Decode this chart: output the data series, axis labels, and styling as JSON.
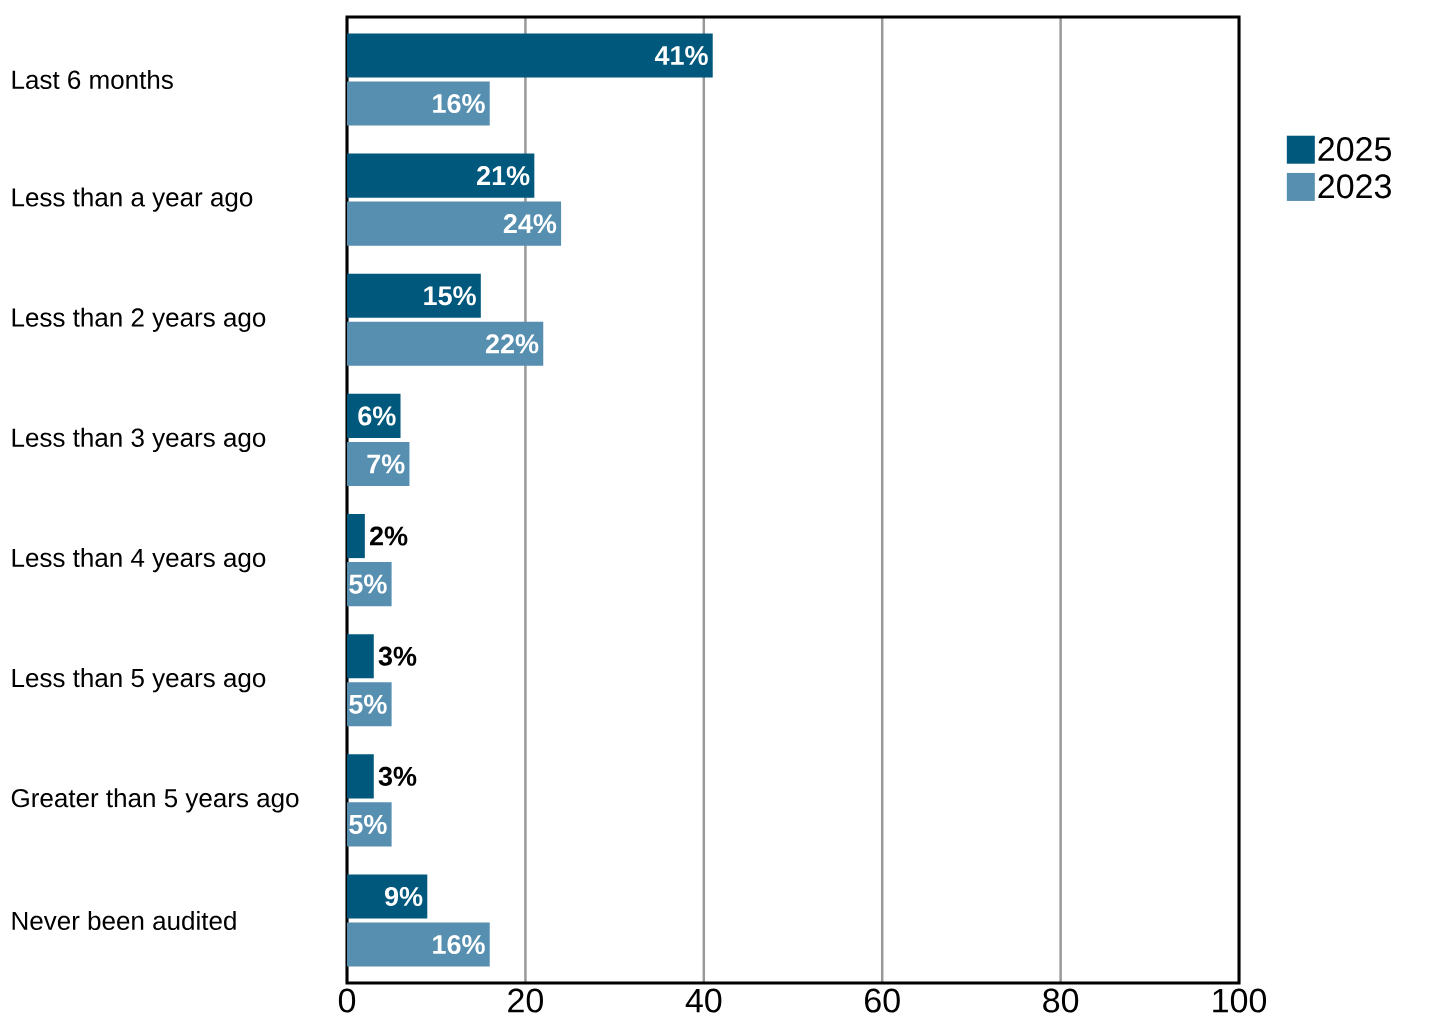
{
  "chart_data": {
    "type": "bar",
    "orientation": "horizontal",
    "categories": [
      "Last 6 months",
      "Less than a year ago",
      "Less than 2 years ago",
      "Less than 3 years ago",
      "Less than 4 years ago",
      "Less than 5 years ago",
      "Greater than 5 years ago",
      "Never been audited"
    ],
    "series": [
      {
        "name": "2025",
        "color": "#00587c",
        "values": [
          41,
          21,
          15,
          6,
          2,
          3,
          3,
          9
        ],
        "value_labels": [
          "41%",
          "21%",
          "15%",
          "6%",
          "2%",
          "3%",
          "3%",
          "9%"
        ]
      },
      {
        "name": "2023",
        "color": "#568fb0",
        "values": [
          16,
          24,
          22,
          7,
          5,
          5,
          5,
          16
        ],
        "value_labels": [
          "16%",
          "24%",
          "22%",
          "7%",
          "5%",
          "5%",
          "5%",
          "16%"
        ]
      }
    ],
    "xlim": [
      0,
      100
    ],
    "xticks": [
      0,
      20,
      40,
      60,
      80,
      100
    ],
    "grid": "x",
    "legend": "right"
  }
}
